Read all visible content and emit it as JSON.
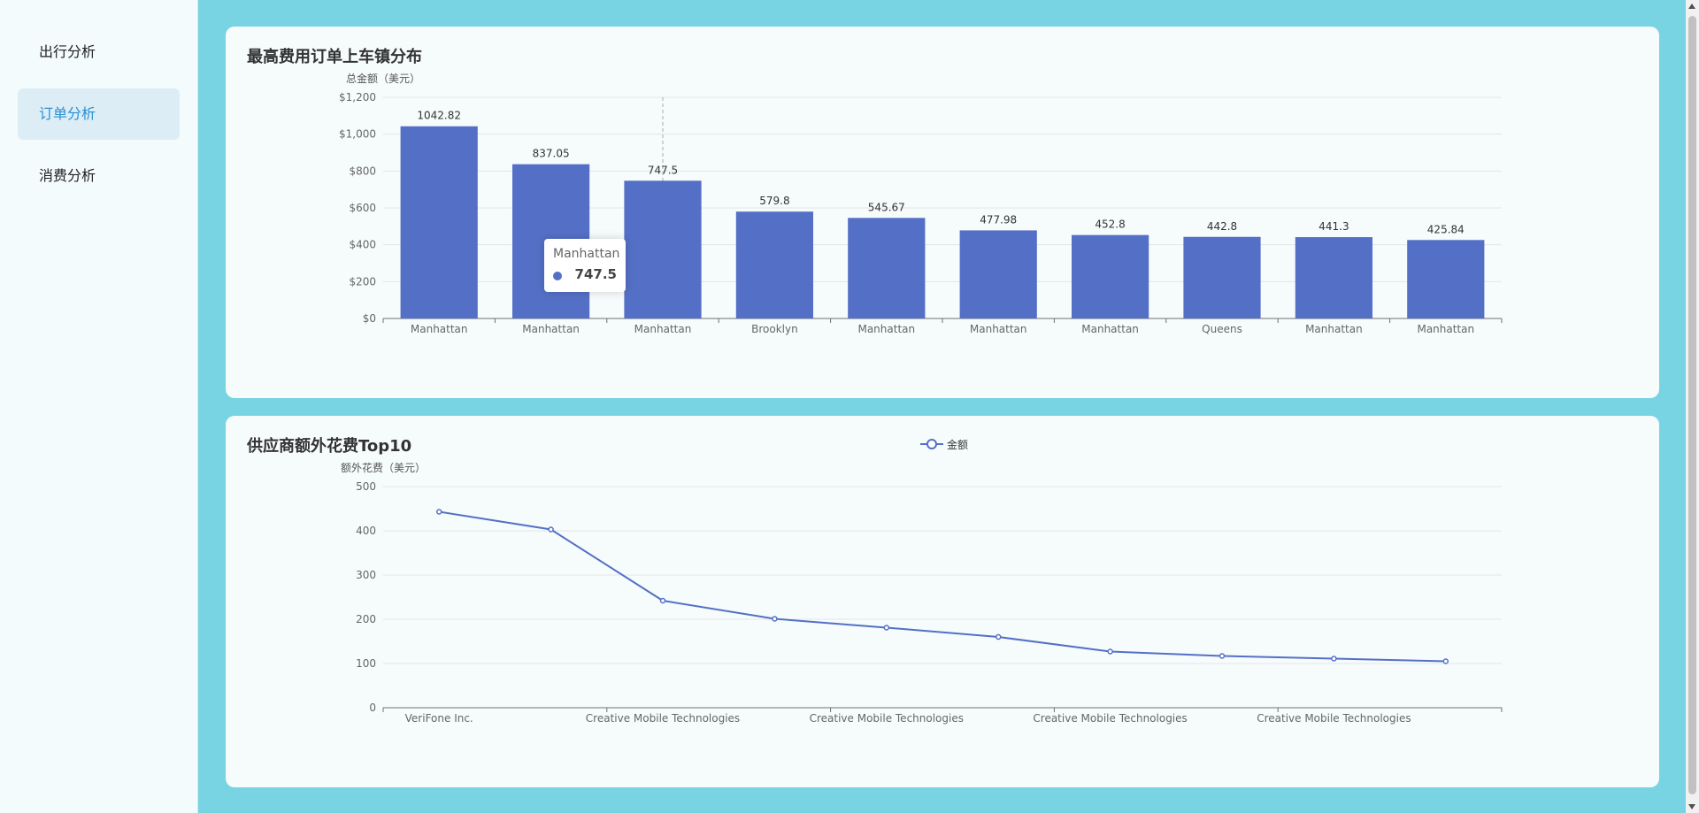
{
  "sidebar": {
    "items": [
      {
        "label": "出行分析",
        "active": false
      },
      {
        "label": "订单分析",
        "active": true
      },
      {
        "label": "消费分析",
        "active": false
      }
    ]
  },
  "colors": {
    "background": "#78d3e3",
    "series": "#5470c6",
    "active_menu_text": "#2b8fd2",
    "active_menu_bg": "#dcedf6"
  },
  "bar_panel": {
    "title": "最高费用订单上车镇分布",
    "y_axis_name": "总金额（美元）",
    "tooltip": {
      "category": "Manhattan",
      "value": "747.5"
    }
  },
  "line_panel": {
    "title": "供应商额外花费Top10",
    "y_axis_name": "额外花费（美元）",
    "legend": "金额"
  },
  "chart_data": [
    {
      "type": "bar",
      "title": "最高费用订单上车镇分布",
      "ylabel": "总金额（美元）",
      "categories": [
        "Manhattan",
        "Manhattan",
        "Manhattan",
        "Brooklyn",
        "Manhattan",
        "Manhattan",
        "Manhattan",
        "Queens",
        "Manhattan",
        "Manhattan"
      ],
      "values": [
        1042.82,
        837.05,
        747.5,
        579.8,
        545.67,
        477.98,
        452.8,
        442.8,
        441.3,
        425.84
      ],
      "value_labels": [
        "1042.82",
        "837.05",
        "747.5",
        "579.8",
        "545.67",
        "477.98",
        "452.8",
        "442.8",
        "441.3",
        "425.84"
      ],
      "ylim": [
        0,
        1200
      ],
      "yticks": [
        0,
        200,
        400,
        600,
        800,
        1000,
        1200
      ],
      "ytick_labels": [
        "$0",
        "$200",
        "$400",
        "$600",
        "$800",
        "$1,000",
        "$1,200"
      ],
      "grid": true,
      "hovered_index": 2
    },
    {
      "type": "line",
      "title": "供应商额外花费Top10",
      "ylabel": "额外花费（美元）",
      "categories": [
        "VeriFone Inc.",
        "",
        "Creative Mobile Technologies",
        "",
        "Creative Mobile Technologies",
        "",
        "Creative Mobile Technologies",
        "",
        "Creative Mobile Technologies",
        ""
      ],
      "series": [
        {
          "name": "金额",
          "values": [
            443,
            403,
            242,
            201,
            181,
            160,
            127,
            117,
            111,
            105
          ]
        }
      ],
      "ylim": [
        0,
        500
      ],
      "yticks": [
        0,
        100,
        200,
        300,
        400,
        500
      ],
      "ytick_labels": [
        "0",
        "100",
        "200",
        "300",
        "400",
        "500"
      ],
      "grid": true,
      "legend_position": "top-center"
    }
  ]
}
